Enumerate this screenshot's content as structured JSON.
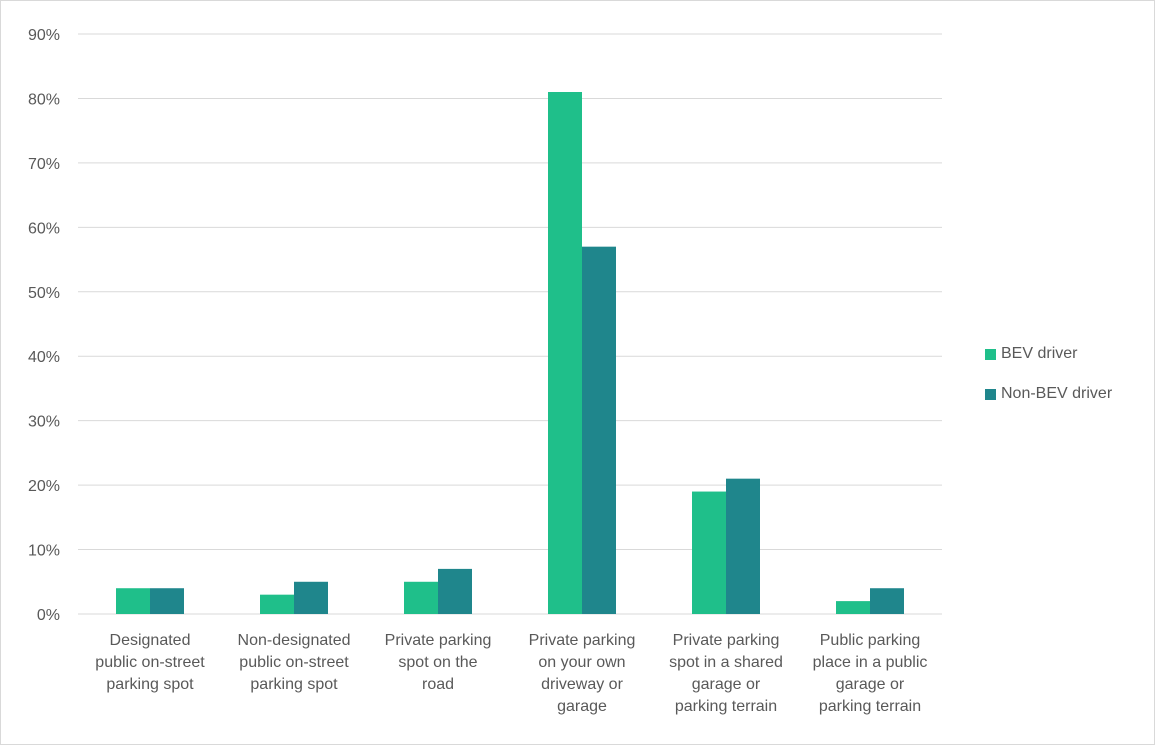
{
  "chart_data": {
    "type": "bar",
    "categories": [
      [
        "Designated",
        "public on-street",
        "parking spot"
      ],
      [
        "Non-designated",
        "public on-street",
        "parking spot"
      ],
      [
        "Private parking",
        "spot on the",
        "road"
      ],
      [
        "Private parking",
        "on your own",
        "driveway or",
        "garage"
      ],
      [
        "Private parking",
        "spot in a shared",
        "garage or",
        "parking terrain"
      ],
      [
        "Public parking",
        "place in a public",
        "garage or",
        "parking terrain"
      ]
    ],
    "series": [
      {
        "name": "BEV driver",
        "color": "#1fbf8a",
        "values": [
          4,
          3,
          5,
          81,
          19,
          2
        ]
      },
      {
        "name": "Non-BEV driver",
        "color": "#1f868c",
        "values": [
          4,
          5,
          7,
          57,
          21,
          4
        ]
      }
    ],
    "ylim": [
      0,
      90
    ],
    "yticks": [
      "0%",
      "10%",
      "20%",
      "30%",
      "40%",
      "50%",
      "60%",
      "70%",
      "80%",
      "90%"
    ],
    "grid": true,
    "legend_position": "right"
  }
}
